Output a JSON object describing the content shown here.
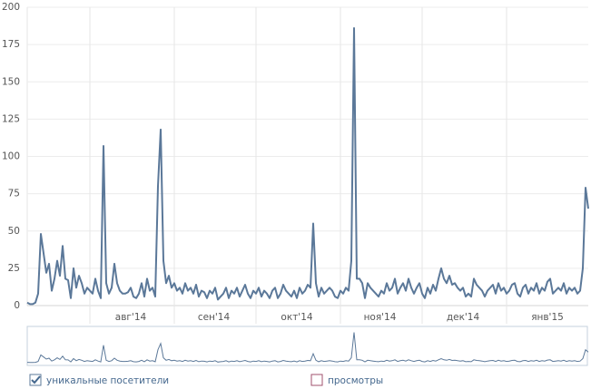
{
  "chart_data": {
    "type": "line",
    "color": "#5b7899",
    "categories": [
      null,
      "авг'14",
      "сен'14",
      "окт'14",
      "ноя'14",
      "дек'14",
      "янв'15"
    ],
    "values": [
      [
        2,
        1,
        1,
        2,
        8,
        48,
        35,
        22,
        28,
        10,
        18,
        30,
        20,
        40,
        18,
        17,
        5,
        25,
        12,
        20,
        15,
        8,
        12
      ],
      [
        10,
        8,
        18,
        10,
        5,
        107,
        15,
        8,
        12,
        28,
        15,
        10,
        8,
        8,
        9,
        12,
        6,
        5,
        8,
        15,
        6,
        18,
        10,
        12,
        6,
        80,
        118,
        30,
        15,
        20,
        12
      ],
      [
        15,
        10,
        12,
        8,
        15,
        10,
        12,
        8,
        14,
        6,
        10,
        9,
        5,
        10,
        8,
        12,
        4,
        6,
        8,
        12,
        5,
        10,
        8,
        12,
        6,
        10,
        14,
        8,
        5,
        10
      ],
      [
        8,
        12,
        6,
        10,
        8,
        5,
        10,
        12,
        5,
        8,
        14,
        10,
        8,
        6,
        10,
        5,
        12,
        8,
        10,
        14,
        12,
        55,
        15,
        6,
        12,
        8,
        10,
        12,
        10,
        6,
        5
      ],
      [
        10,
        8,
        12,
        10,
        30,
        186,
        18,
        18,
        15,
        5,
        15,
        12,
        10,
        8,
        6,
        10,
        8,
        15,
        10,
        12,
        18,
        8,
        12,
        15,
        10,
        18,
        12,
        8,
        12,
        15
      ],
      [
        8,
        5,
        12,
        8,
        14,
        10,
        18,
        25,
        18,
        15,
        20,
        14,
        15,
        12,
        10,
        12,
        6,
        8,
        6,
        18,
        14,
        12,
        10,
        6,
        10,
        12,
        14,
        8,
        15,
        10,
        12
      ],
      [
        8,
        10,
        14,
        15,
        8,
        6,
        12,
        14,
        8,
        12,
        10,
        15,
        8,
        12,
        10,
        16,
        18,
        8,
        10,
        12,
        10,
        15,
        8,
        12,
        10,
        12,
        8,
        10,
        25,
        79,
        65
      ]
    ],
    "ylim": [
      0,
      200
    ],
    "yticks": [
      0,
      25,
      50,
      75,
      100,
      125,
      150,
      175,
      200
    ],
    "grid": true,
    "legend": [
      {
        "label": "уникальные посетители",
        "checked": true,
        "color": "#5b7899"
      },
      {
        "label": "просмотры",
        "checked": false,
        "color": "#a0506e"
      }
    ]
  }
}
